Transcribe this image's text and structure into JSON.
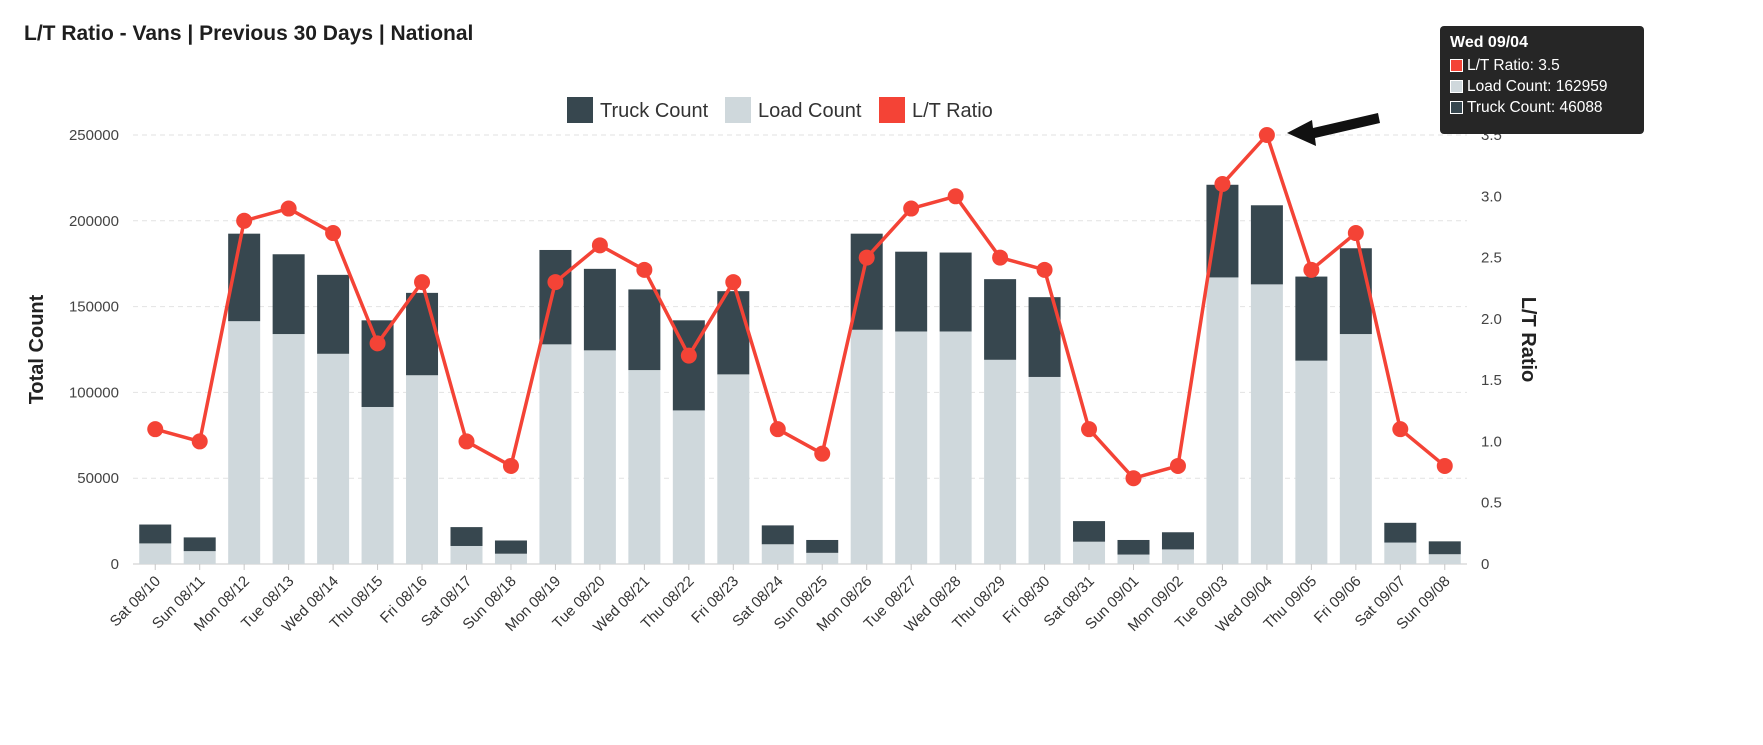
{
  "title": "L/T Ratio - Vans | Previous 30 Days | National",
  "chart_data": {
    "type": "bar",
    "stacked": true,
    "categories": [
      "Sat 08/10",
      "Sun 08/11",
      "Mon 08/12",
      "Tue 08/13",
      "Wed 08/14",
      "Thu 08/15",
      "Fri 08/16",
      "Sat 08/17",
      "Sun 08/18",
      "Mon 08/19",
      "Tue 08/20",
      "Wed 08/21",
      "Thu 08/22",
      "Fri 08/23",
      "Sat 08/24",
      "Sun 08/25",
      "Mon 08/26",
      "Tue 08/27",
      "Wed 08/28",
      "Thu 08/29",
      "Fri 08/30",
      "Sat 08/31",
      "Sun 09/01",
      "Mon 09/02",
      "Tue 09/03",
      "Wed 09/04",
      "Thu 09/05",
      "Fri 09/06",
      "Sat 09/07",
      "Sun 09/08"
    ],
    "series": [
      {
        "name": "Truck Count",
        "type": "bar",
        "axis": "left",
        "color": "#37474f",
        "values": [
          11000,
          8000,
          51000,
          46500,
          46000,
          50500,
          48000,
          11000,
          7700,
          55000,
          47500,
          47000,
          52500,
          48500,
          11000,
          7500,
          56000,
          46500,
          46000,
          47000,
          46500,
          12000,
          8500,
          10000,
          54000,
          46088,
          49000,
          50000,
          11500,
          7500
        ]
      },
      {
        "name": "Load Count",
        "type": "bar",
        "axis": "left",
        "color": "#cfd8dc",
        "values": [
          12000,
          7500,
          141500,
          134000,
          122500,
          91500,
          110000,
          10500,
          6000,
          128000,
          124500,
          113000,
          89500,
          110500,
          11500,
          6500,
          136500,
          135500,
          135500,
          119000,
          109000,
          13000,
          5500,
          8500,
          167000,
          162959,
          118500,
          134000,
          12500,
          5700
        ]
      },
      {
        "name": "L/T Ratio",
        "type": "line",
        "axis": "right",
        "color": "#f44336",
        "values": [
          1.1,
          1.0,
          2.8,
          2.9,
          2.7,
          1.8,
          2.3,
          1.0,
          0.8,
          2.3,
          2.6,
          2.4,
          1.7,
          2.3,
          1.1,
          0.9,
          2.5,
          2.9,
          3.0,
          2.5,
          2.4,
          1.1,
          0.7,
          0.8,
          3.1,
          3.5,
          2.4,
          2.7,
          1.1,
          0.8
        ]
      }
    ],
    "ylabel": "Total Count",
    "ylabel_right": "L/T Ratio",
    "ylim": [
      0,
      250000
    ],
    "ylim_right": [
      0,
      3.5
    ],
    "yticks": [
      "0",
      "50000",
      "100000",
      "150000",
      "200000",
      "250000"
    ],
    "yticks_right": [
      "0",
      "0.5",
      "1.0",
      "1.5",
      "2.0",
      "2.5",
      "3.0",
      "3.5"
    ],
    "grid": true,
    "legend_position": "top-center"
  },
  "tooltip": {
    "date": "Wed 09/04",
    "rows": [
      {
        "label": "L/T Ratio: 3.5",
        "color": "#f44336"
      },
      {
        "label": "Load Count: 162959",
        "color": "#cfd8dc"
      },
      {
        "label": "Truck Count: 46088",
        "color": "#37474f"
      }
    ]
  }
}
